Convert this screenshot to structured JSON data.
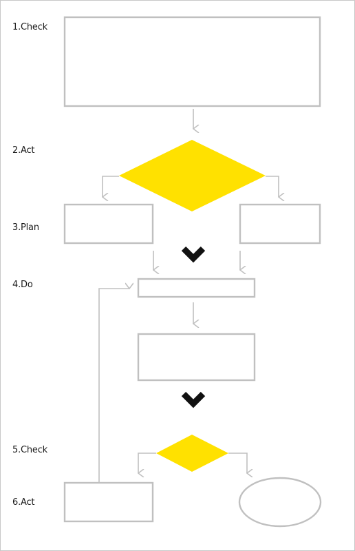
{
  "colors": {
    "box_stroke": "#c0c0c0",
    "connector": "#c0c0c0",
    "decision_fill": "#ffe100",
    "chevron": "#111111",
    "label_text": "#1a1a1a"
  },
  "steps": [
    {
      "label": "1.Check"
    },
    {
      "label": "2.Act"
    },
    {
      "label": "3.Plan"
    },
    {
      "label": "4.Do"
    },
    {
      "label": "5.Check"
    },
    {
      "label": "6.Act"
    }
  ],
  "icons": {
    "chevron": "chevron-down-icon"
  }
}
